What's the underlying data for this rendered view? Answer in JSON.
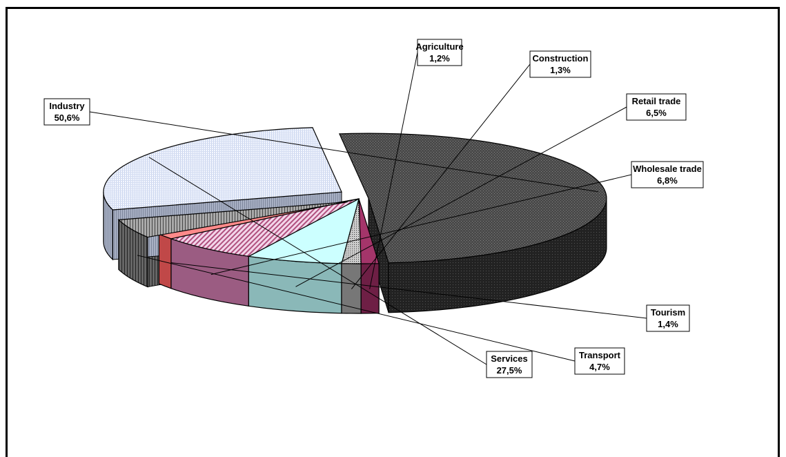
{
  "chart_data": {
    "type": "pie",
    "title": "",
    "slices": [
      {
        "name": "Industry",
        "value": 50.6,
        "label": "50,6%",
        "color": "#555555"
      },
      {
        "name": "Agriculture",
        "value": 1.2,
        "label": "1,2%",
        "color": "#9b2d5a"
      },
      {
        "name": "Construction",
        "value": 1.3,
        "label": "1,3%",
        "color": "#a0a0a0"
      },
      {
        "name": "Retail trade",
        "value": 6.5,
        "label": "6,5%",
        "color": "#ccffff"
      },
      {
        "name": "Wholesale trade",
        "value": 6.8,
        "label": "6,8%",
        "color": "#e6b8d8"
      },
      {
        "name": "Tourism",
        "value": 1.4,
        "label": "1,4%",
        "color": "#ff8080"
      },
      {
        "name": "Transport",
        "value": 4.7,
        "label": "4,7%",
        "color": "#999999"
      },
      {
        "name": "Services",
        "value": 27.5,
        "label": "27,5%",
        "color": "#e8eefc"
      }
    ]
  },
  "colors": {
    "frame": "#000000",
    "background": "#ffffff",
    "services_side": "#9aa3b8",
    "industry_side": "#333333"
  }
}
